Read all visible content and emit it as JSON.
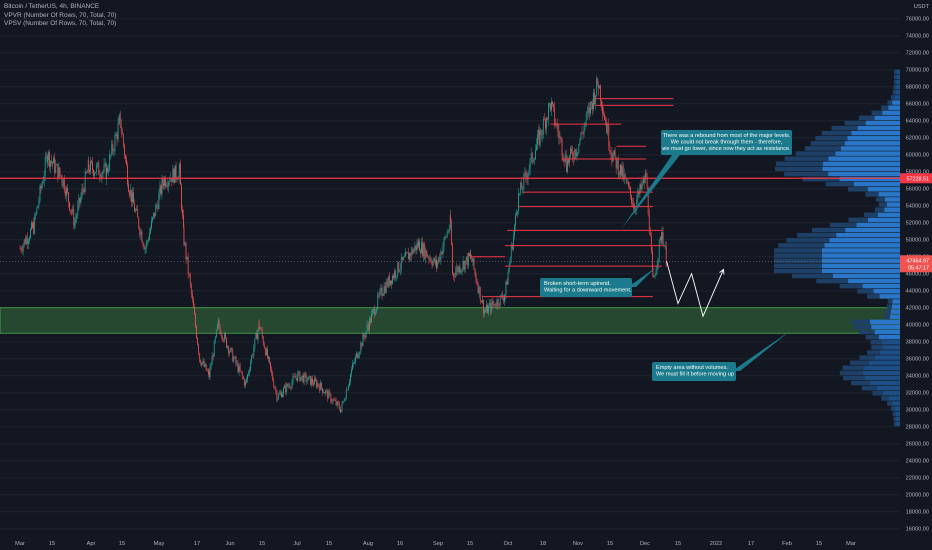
{
  "legend": {
    "title": "Bitcoin / TetherUS, 4h, BINANCE",
    "line2": "VPVR (Number Of Rows, 70, Total, 70)",
    "line3": "VPSV (Number Of Rows, 70, Total, 70)"
  },
  "currency": "USDT",
  "colors": {
    "background": "#131722",
    "up": "#26a69a",
    "down": "#ef5350",
    "level": "#f23645",
    "zone": "#2e5a36",
    "zone_border": "#4caf50",
    "note_bg": "#1b7a8c",
    "vp_up": "#2a77c9",
    "vp_down": "#1e3f66"
  },
  "price_badges": {
    "resistance": "57228.51",
    "last": "47464.97",
    "last_sub": "05:47:17"
  },
  "annotations": [
    {
      "id": "rebound",
      "lines": [
        "There was a rebound from most of the major levels.",
        "We could not break through them - therefore,",
        "we must go lower, since now they act as resistance."
      ]
    },
    {
      "id": "broken",
      "lines": [
        "Broken short-term uptrend.",
        "Waiting for a downward movement."
      ]
    },
    {
      "id": "empty",
      "lines": [
        "Empty area without volumes.",
        "We must fill it before moving up"
      ]
    }
  ],
  "chart_data": {
    "type": "candlestick",
    "x_ticks": [
      "Mar",
      "15",
      "Apr",
      "15",
      "May",
      "17",
      "Jun",
      "15",
      "Jul",
      "15",
      "Aug",
      "16",
      "Sep",
      "15",
      "Oct",
      "18",
      "Nov",
      "15",
      "Dec",
      "15",
      "2022",
      "17",
      "Feb",
      "15",
      "Mar"
    ],
    "y_ticks": [
      76000,
      74000,
      72000,
      70000,
      68000,
      66000,
      64000,
      62000,
      60000,
      58000,
      56000,
      54000,
      52000,
      50000,
      48000,
      46000,
      44000,
      42000,
      40000,
      38000,
      36000,
      34000,
      32000,
      30000,
      28000,
      26000,
      24000,
      22000,
      20000,
      18000,
      16000
    ],
    "y_tick_labels": [
      "76000.00",
      "74000.00",
      "72000.00",
      "70000.00",
      "68000.00",
      "66000.00",
      "64000.00",
      "62000.00",
      "60000.00",
      "58000.00",
      "56000.00",
      "54000.00",
      "52000.00",
      "50000.00",
      "48000.00",
      "46000.00",
      "44000.00",
      "42000.00",
      "40000.00",
      "38000.00",
      "36000.00",
      "34000.00",
      "32000.00",
      "30000.00",
      "28000.00",
      "26000.00",
      "24000.00",
      "22000.00",
      "20000.00",
      "18000.00",
      "16000.00"
    ],
    "y_range": [
      15500,
      78200
    ],
    "price_path": [
      [
        "Mar 1",
        49000
      ],
      [
        "Mar 7",
        51500
      ],
      [
        "Mar 13",
        60000
      ],
      [
        "Mar 20",
        57000
      ],
      [
        "Mar 25",
        52000
      ],
      [
        "Mar 31",
        58500
      ],
      [
        "Apr 8",
        58000
      ],
      [
        "Apr 14",
        64000
      ],
      [
        "Apr 18",
        56000
      ],
      [
        "Apr 25",
        49000
      ],
      [
        "May 3",
        57000
      ],
      [
        "May 10",
        58000
      ],
      [
        "May 12",
        50000
      ],
      [
        "May 19",
        36000
      ],
      [
        "May 23",
        34000
      ],
      [
        "May 27",
        40000
      ],
      [
        "Jun 8",
        33000
      ],
      [
        "Jun 14",
        40000
      ],
      [
        "Jun 22",
        31500
      ],
      [
        "Jul 1",
        34000
      ],
      [
        "Jul 10",
        33000
      ],
      [
        "Jul 20",
        30000
      ],
      [
        "Jul 25",
        35000
      ],
      [
        "Aug 1",
        40000
      ],
      [
        "Aug 7",
        44000
      ],
      [
        "Aug 15",
        47000
      ],
      [
        "Aug 23",
        49500
      ],
      [
        "Aug 31",
        47000
      ],
      [
        "Sep 6",
        52000
      ],
      [
        "Sep 7",
        46000
      ],
      [
        "Sep 15",
        48000
      ],
      [
        "Sep 21",
        41500
      ],
      [
        "Sep 30",
        43500
      ],
      [
        "Oct 6",
        55000
      ],
      [
        "Oct 15",
        62000
      ],
      [
        "Oct 20",
        66000
      ],
      [
        "Oct 27",
        59000
      ],
      [
        "Nov 1",
        61000
      ],
      [
        "Nov 10",
        68500
      ],
      [
        "Nov 16",
        60000
      ],
      [
        "Nov 20",
        58000
      ],
      [
        "Nov 26",
        54000
      ],
      [
        "Dec 1",
        57500
      ],
      [
        "Dec 4",
        45000
      ],
      [
        "Dec 8",
        51000
      ],
      [
        "Dec 10",
        47465
      ]
    ],
    "projection": [
      [
        "Dec 10",
        47465
      ],
      [
        "Dec 15",
        42500
      ],
      [
        "Dec 21",
        46000
      ],
      [
        "Dec 26",
        41000
      ],
      [
        "Jan 4",
        46500
      ]
    ],
    "resistance_line": 57228.51,
    "support_zone": [
      39000,
      42000
    ],
    "last_price_line": 47464.97,
    "levels": [
      {
        "price": 66600,
        "from": "Nov 9",
        "to": "Dec 13"
      },
      {
        "price": 65800,
        "from": "Nov 9",
        "to": "Dec 13"
      },
      {
        "price": 63600,
        "from": "Oct 20",
        "to": "Nov 20"
      },
      {
        "price": 61000,
        "from": "Nov 18",
        "to": "Dec 1"
      },
      {
        "price": 59500,
        "from": "Oct 25",
        "to": "Dec 1"
      },
      {
        "price": 55600,
        "from": "Oct 8",
        "to": "Dec 4"
      },
      {
        "price": 53900,
        "from": "Oct 6",
        "to": "Dec 4"
      },
      {
        "price": 51100,
        "from": "Oct 1",
        "to": "Dec 8"
      },
      {
        "price": 49300,
        "from": "Sep 30",
        "to": "Dec 8"
      },
      {
        "price": 48000,
        "from": "Sep 15",
        "to": "Sep 30"
      },
      {
        "price": 46900,
        "from": "Sep 30",
        "to": "Dec 8"
      },
      {
        "price": 43300,
        "from": "Sep 20",
        "to": "Dec 4"
      }
    ],
    "volume_profile": [
      {
        "price": 16000,
        "up": 0,
        "down": 0
      }
    ]
  }
}
